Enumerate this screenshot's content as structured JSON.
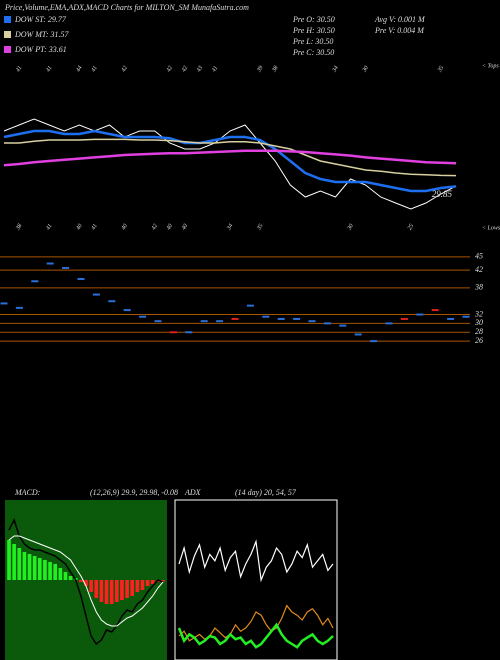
{
  "header": {
    "title": "Price,Volume,EMA,ADX,MACD Charts for MILTON_SM MunafaSutra.com",
    "stats": [
      [
        "Pre O: 30.50",
        "Pre H: 30.50",
        "Pre L: 30.50",
        "Pre C: 30.50"
      ],
      [
        "Avg V: 0.001 M",
        "Pre V: 0.004 M"
      ]
    ]
  },
  "chart_data": [
    {
      "type": "line",
      "ylim": [
        25,
        50
      ],
      "label_last": true,
      "tops_label": "< Tops",
      "lows_label": "< Lows",
      "tops": [
        null,
        41,
        null,
        41,
        null,
        44,
        41,
        null,
        42,
        null,
        null,
        42,
        42,
        43,
        41,
        null,
        null,
        39,
        38,
        null,
        null,
        null,
        34,
        null,
        30,
        null,
        null,
        null,
        null,
        35,
        null
      ],
      "lows": [
        null,
        38,
        null,
        41,
        null,
        40,
        41,
        null,
        40,
        null,
        42,
        40,
        40,
        null,
        null,
        34,
        null,
        35,
        null,
        null,
        null,
        null,
        null,
        30,
        null,
        null,
        null,
        25,
        null,
        null,
        null
      ],
      "series": [
        {
          "color": "#ffffff",
          "width": 1,
          "values": [
            39,
            40,
            41,
            40,
            39,
            40,
            39,
            40,
            38,
            39,
            39,
            37,
            36,
            36,
            37,
            39,
            40,
            37,
            34,
            30,
            28,
            29,
            28,
            31,
            30,
            28,
            27,
            26,
            27,
            28.5,
            29.85
          ]
        },
        {
          "name": "DOW ST: 29.77",
          "color": "#1e6ff0",
          "width": 2.5,
          "values": [
            38,
            38.5,
            39,
            39,
            38.5,
            38.5,
            39,
            38.5,
            38,
            38,
            38,
            37.8,
            37,
            37,
            37.5,
            38,
            38,
            37.5,
            36,
            34,
            32,
            31,
            30.5,
            30.5,
            30.5,
            30,
            29.5,
            29,
            29,
            29.5,
            29.77
          ]
        },
        {
          "name": "DOW MT: 31.57",
          "color": "#d8d0a0",
          "width": 1.5,
          "values": [
            37,
            37,
            37.3,
            37.5,
            37.5,
            37.5,
            37.6,
            37.6,
            37.6,
            37.5,
            37.5,
            37.4,
            37.2,
            37,
            37,
            37.2,
            37.2,
            37,
            36.5,
            36,
            35,
            34,
            33.5,
            33,
            32.5,
            32.3,
            32,
            31.8,
            31.7,
            31.6,
            31.57
          ]
        },
        {
          "name": "DOW PT: 33.61",
          "color": "#e040e0",
          "width": 2.5,
          "values": [
            33.3,
            33.5,
            33.8,
            34,
            34.2,
            34.4,
            34.6,
            34.8,
            35,
            35.1,
            35.2,
            35.3,
            35.3,
            35.4,
            35.5,
            35.6,
            35.7,
            35.7,
            35.7,
            35.6,
            35.5,
            35.3,
            35.1,
            34.9,
            34.6,
            34.4,
            34.2,
            34,
            33.8,
            33.7,
            33.61
          ]
        }
      ]
    },
    {
      "type": "dash",
      "ylim": [
        24,
        47
      ],
      "yticks": [
        45,
        42,
        38,
        32,
        30,
        28,
        26
      ],
      "grid": true,
      "grid_color": "#a85300",
      "series": [
        {
          "color": "#2a6fdb",
          "values": [
            34.5,
            33.5,
            39.5,
            43.5,
            42.5,
            40,
            36.5,
            35,
            33,
            31.5,
            30.5,
            null,
            28,
            30.5,
            30.5,
            null,
            34,
            31.5,
            31,
            31,
            30.5,
            30,
            29.5,
            27.5,
            26,
            30,
            null,
            32,
            null,
            31,
            31.5
          ]
        },
        {
          "color": "#e02020",
          "values": [
            null,
            null,
            null,
            null,
            null,
            null,
            null,
            null,
            null,
            null,
            null,
            28,
            null,
            null,
            null,
            31,
            null,
            null,
            null,
            null,
            null,
            null,
            null,
            null,
            null,
            null,
            31,
            null,
            33,
            null,
            null
          ]
        }
      ]
    },
    {
      "type": "line",
      "title": "MACD:",
      "subtitle": "(12,26,9) 29.9, 29.98, -0.08",
      "ylim": [
        -4,
        4
      ],
      "background": "#0b5a0b",
      "series": [
        {
          "kind": "bar",
          "color": "#22ee22",
          "negative_color": "#ff2020",
          "values": [
            2,
            1.8,
            1.6,
            1.4,
            1.3,
            1.2,
            1.1,
            1,
            0.9,
            0.8,
            0.6,
            0.4,
            0.2,
            0.1,
            -0.1,
            -0.3,
            -0.6,
            -0.9,
            -1.1,
            -1.2,
            -1.2,
            -1.1,
            -1,
            -0.9,
            -0.8,
            -0.6,
            -0.5,
            -0.3,
            -0.2,
            -0.1,
            -0.08
          ]
        },
        {
          "color": "#000000",
          "width": 1.5,
          "values": [
            2.5,
            3,
            2.2,
            1.8,
            1.6,
            1.5,
            1.5,
            1.4,
            1.3,
            1.2,
            1,
            0.8,
            0.4,
            0,
            -0.8,
            -1.8,
            -2.8,
            -3.2,
            -3,
            -2.5,
            -2.6,
            -2.3,
            -1.8,
            -1.5,
            -1.6,
            -1.2,
            -1,
            -0.6,
            -0.3,
            0,
            -0.1
          ]
        },
        {
          "color": "#ffffff",
          "width": 1,
          "values": [
            2,
            2.2,
            2.2,
            2.1,
            2,
            1.9,
            1.8,
            1.7,
            1.6,
            1.5,
            1.4,
            1.2,
            1,
            0.6,
            0.2,
            -0.3,
            -1,
            -1.6,
            -2,
            -2.2,
            -2.3,
            -2.3,
            -2.1,
            -1.9,
            -1.8,
            -1.6,
            -1.4,
            -1.1,
            -0.8,
            -0.4,
            -0.1
          ]
        }
      ]
    },
    {
      "type": "line",
      "title": "ADX",
      "subtitle": "(14 day) 20, 54, 57",
      "ylim": [
        0,
        100
      ],
      "border": "#ffffff",
      "series": [
        {
          "color": "#ffffff",
          "width": 1.2,
          "values": [
            60,
            70,
            55,
            65,
            72,
            58,
            66,
            62,
            70,
            56,
            64,
            68,
            52,
            60,
            66,
            74,
            50,
            58,
            62,
            70,
            66,
            55,
            60,
            68,
            64,
            72,
            58,
            62,
            66,
            56,
            60
          ]
        },
        {
          "color": "#e08a1e",
          "width": 1.2,
          "values": [
            15,
            18,
            12,
            14,
            16,
            13,
            15,
            20,
            17,
            14,
            16,
            22,
            18,
            20,
            24,
            30,
            28,
            22,
            18,
            20,
            26,
            34,
            30,
            28,
            25,
            30,
            32,
            28,
            22,
            26,
            20
          ]
        },
        {
          "color": "#22ee22",
          "width": 2.5,
          "values": [
            20,
            12,
            16,
            14,
            10,
            12,
            15,
            14,
            10,
            12,
            16,
            13,
            14,
            10,
            12,
            8,
            10,
            14,
            18,
            22,
            16,
            12,
            10,
            8,
            12,
            14,
            16,
            12,
            10,
            12,
            15
          ]
        }
      ]
    }
  ]
}
